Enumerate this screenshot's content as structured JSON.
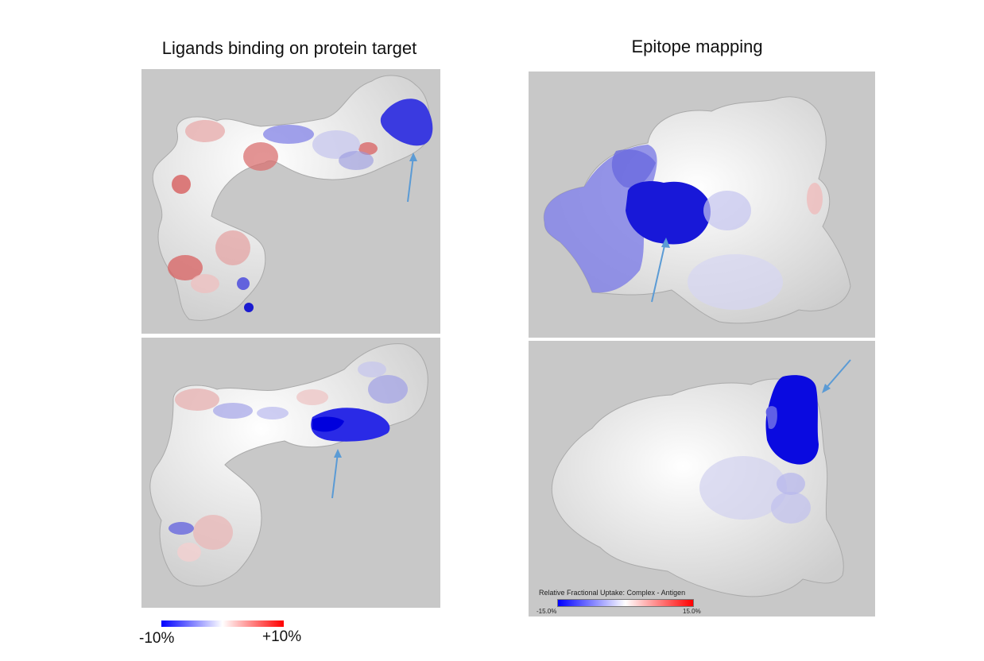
{
  "titles": {
    "left": "Ligands binding on protein target",
    "right": "Epitope mapping"
  },
  "legend_left": {
    "min_label": "-10%",
    "max_label": "+10%",
    "colors": [
      "#0000ff",
      "#ffffff",
      "#ff0000"
    ]
  },
  "legend_right": {
    "caption": "Relative Fractional Uptake: Complex - Antigen",
    "min_label": "-15.0%",
    "max_label": "15.0%",
    "colors": [
      "#0000ff",
      "#ffffff",
      "#ff0000"
    ]
  },
  "panel_background": "#c8c8c8",
  "arrow_color": "#5b9bd5",
  "panels": [
    {
      "name": "ligands-panel-top"
    },
    {
      "name": "ligands-panel-bottom"
    },
    {
      "name": "epitope-panel-top"
    },
    {
      "name": "epitope-panel-bottom"
    }
  ]
}
